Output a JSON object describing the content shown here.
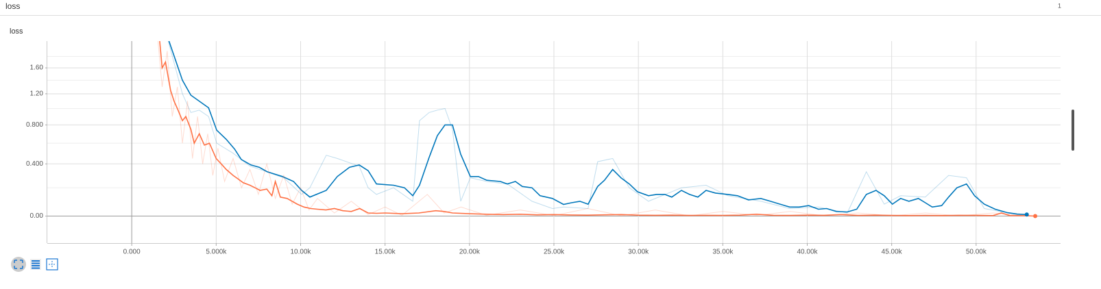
{
  "header": {
    "title": "loss",
    "count": "1"
  },
  "chart_data": {
    "type": "line",
    "title": "loss",
    "xlim": [
      -5000,
      55000
    ],
    "xticks": [
      {
        "value": 0,
        "label": "0.000"
      },
      {
        "value": 5000,
        "label": "5.000k"
      },
      {
        "value": 10000,
        "label": "10.00k"
      },
      {
        "value": 15000,
        "label": "15.00k"
      },
      {
        "value": 20000,
        "label": "20.00k"
      },
      {
        "value": 25000,
        "label": "25.00k"
      },
      {
        "value": 30000,
        "label": "30.00k"
      },
      {
        "value": 35000,
        "label": "35.00k"
      },
      {
        "value": 40000,
        "label": "40.00k"
      },
      {
        "value": 45000,
        "label": "45.00k"
      },
      {
        "value": 50000,
        "label": "50.00k"
      }
    ],
    "ylim": [
      -0.16,
      2.09
    ],
    "yscale": "log1p",
    "yticks": [
      {
        "value": 0,
        "label": "0.00"
      },
      {
        "value": 0.4,
        "label": "0.400"
      },
      {
        "value": 0.8,
        "label": "0.800"
      },
      {
        "value": 1.2,
        "label": "1.20"
      },
      {
        "value": 1.6,
        "label": "1.60"
      }
    ],
    "yminor": [
      0.2,
      0.6,
      1.0,
      1.4,
      1.8
    ],
    "grid": true,
    "series": [
      {
        "color": "#0077bb",
        "smoothed": false,
        "x": [
          2000,
          3000,
          3500,
          4000,
          4550,
          5030,
          6000,
          7000,
          8000,
          9000,
          10060,
          10550,
          11520,
          12170,
          13470,
          14000,
          14490,
          15500,
          16640,
          17040,
          17610,
          18100,
          18550,
          18990,
          19480,
          20050,
          21020,
          22240,
          23700,
          24910,
          25570,
          27020,
          27590,
          28480,
          29460,
          30600,
          32550,
          34010,
          35300,
          37250,
          38960,
          40660,
          42370,
          43500,
          44560,
          45530,
          46990,
          48370,
          49430,
          50480,
          52430,
          53000
        ],
        "values": [
          2.3,
          1.2,
          0.95,
          0.98,
          0.9,
          0.6,
          0.5,
          0.38,
          0.33,
          0.28,
          0.15,
          0.2,
          0.48,
          0.45,
          0.38,
          0.2,
          0.15,
          0.2,
          0.1,
          0.85,
          0.95,
          0.98,
          1.0,
          0.75,
          0.1,
          0.28,
          0.25,
          0.23,
          0.1,
          0.05,
          0.06,
          0.05,
          0.42,
          0.45,
          0.2,
          0.1,
          0.2,
          0.22,
          0.14,
          0.1,
          0.05,
          0.06,
          0.02,
          0.33,
          0.08,
          0.14,
          0.13,
          0.3,
          0.28,
          0.05,
          0.01,
          0.01
        ]
      },
      {
        "color": "#0077bb",
        "smoothed": true,
        "x": [
          2000,
          3000,
          3500,
          4550,
          5030,
          5600,
          6090,
          6490,
          7060,
          7550,
          8030,
          8930,
          9580,
          10060,
          10550,
          11520,
          12170,
          12900,
          13470,
          14000,
          14490,
          15500,
          16150,
          16640,
          17040,
          17610,
          18100,
          18550,
          18990,
          19480,
          20050,
          20530,
          21020,
          21830,
          22240,
          22720,
          23130,
          23700,
          24180,
          24910,
          25570,
          26050,
          26540,
          27020,
          27590,
          27990,
          28480,
          28970,
          29460,
          29950,
          30600,
          31080,
          31570,
          31980,
          32550,
          33030,
          33520,
          34010,
          34570,
          35300,
          35870,
          36520,
          37250,
          37820,
          38390,
          38960,
          39520,
          40090,
          40660,
          41150,
          41720,
          42370,
          42930,
          43500,
          44070,
          44560,
          45040,
          45530,
          46020,
          46580,
          46990,
          47400,
          47960,
          48370,
          48860,
          49430,
          49910,
          50480,
          51130,
          51860,
          52430,
          53000
        ],
        "values": [
          2.3,
          1.4,
          1.18,
          1.01,
          0.74,
          0.64,
          0.54,
          0.44,
          0.39,
          0.37,
          0.33,
          0.29,
          0.25,
          0.18,
          0.13,
          0.18,
          0.29,
          0.37,
          0.39,
          0.34,
          0.23,
          0.22,
          0.2,
          0.14,
          0.22,
          0.46,
          0.68,
          0.8,
          0.8,
          0.49,
          0.29,
          0.29,
          0.26,
          0.25,
          0.23,
          0.25,
          0.21,
          0.2,
          0.14,
          0.12,
          0.078,
          0.09,
          0.1,
          0.08,
          0.21,
          0.26,
          0.35,
          0.28,
          0.23,
          0.17,
          0.14,
          0.15,
          0.15,
          0.13,
          0.18,
          0.15,
          0.13,
          0.18,
          0.16,
          0.15,
          0.14,
          0.11,
          0.12,
          0.1,
          0.08,
          0.06,
          0.06,
          0.07,
          0.045,
          0.05,
          0.03,
          0.027,
          0.045,
          0.15,
          0.18,
          0.14,
          0.08,
          0.12,
          0.1,
          0.12,
          0.09,
          0.06,
          0.07,
          0.13,
          0.2,
          0.23,
          0.14,
          0.08,
          0.045,
          0.022,
          0.013,
          0.01
        ]
      },
      {
        "color": "#ff7043",
        "smoothed": false,
        "x": [
          1500,
          1800,
          2100,
          2400,
          2700,
          3000,
          3300,
          3600,
          3900,
          4200,
          4500,
          4800,
          5100,
          5500,
          6000,
          6500,
          7000,
          7500,
          8000,
          8500,
          9000,
          9500,
          10000,
          10500,
          11000,
          12000,
          13000,
          14000,
          15000,
          16000,
          17500,
          18500,
          19500,
          21000,
          23000,
          25000,
          27000,
          29000,
          31000,
          33000,
          35000,
          37000,
          39000,
          41000,
          43000,
          45000,
          47000,
          49000,
          51000,
          53000
        ],
        "values": [
          2.3,
          1.3,
          1.9,
          0.9,
          1.3,
          0.6,
          1.1,
          0.45,
          0.9,
          0.4,
          0.7,
          0.3,
          0.55,
          0.25,
          0.45,
          0.2,
          0.35,
          0.15,
          0.4,
          0.12,
          0.3,
          0.08,
          0.2,
          0.04,
          0.12,
          0.02,
          0.1,
          0.01,
          0.06,
          0.005,
          0.15,
          0.02,
          0.06,
          0.005,
          0.04,
          0.003,
          0.05,
          0.002,
          0.04,
          0.002,
          0.03,
          0.005,
          0.03,
          0.002,
          0.02,
          0.002,
          0.02,
          0.001,
          0.02,
          0.001
        ]
      },
      {
        "color": "#ff7043",
        "smoothed": true,
        "x": [
          1600,
          1800,
          2000,
          2300,
          2500,
          2700,
          3000,
          3200,
          3500,
          3700,
          4000,
          4300,
          4600,
          5000,
          5300,
          5600,
          6000,
          6300,
          6600,
          7000,
          7300,
          7600,
          8000,
          8300,
          8500,
          8800,
          9200,
          9500,
          9800,
          10200,
          10600,
          11000,
          11500,
          12000,
          12500,
          13000,
          13500,
          14000,
          14500,
          15000,
          16000,
          17000,
          18000,
          18500,
          19000,
          20000,
          21000,
          22000,
          23000,
          24000,
          25000,
          26000,
          27000,
          28000,
          29000,
          30000,
          31000,
          32000,
          33000,
          34000,
          35000,
          36000,
          37000,
          38000,
          39000,
          40000,
          41000,
          42000,
          43000,
          44000,
          45000,
          46000,
          47000,
          48000,
          49000,
          50000,
          51000,
          51500,
          52000,
          53000,
          53500
        ],
        "values": [
          2.3,
          1.6,
          1.7,
          1.25,
          1.1,
          1.0,
          0.85,
          0.9,
          0.75,
          0.6,
          0.7,
          0.58,
          0.6,
          0.45,
          0.4,
          0.35,
          0.3,
          0.27,
          0.24,
          0.22,
          0.2,
          0.18,
          0.19,
          0.14,
          0.25,
          0.13,
          0.12,
          0.1,
          0.08,
          0.06,
          0.05,
          0.045,
          0.04,
          0.05,
          0.035,
          0.03,
          0.05,
          0.02,
          0.018,
          0.02,
          0.015,
          0.02,
          0.035,
          0.03,
          0.02,
          0.015,
          0.012,
          0.01,
          0.012,
          0.008,
          0.01,
          0.007,
          0.006,
          0.008,
          0.01,
          0.006,
          0.005,
          0.006,
          0.004,
          0.005,
          0.004,
          0.006,
          0.012,
          0.005,
          0.004,
          0.006,
          0.005,
          0.01,
          0.004,
          0.006,
          0.004,
          0.003,
          0.004,
          0.003,
          0.005,
          0.004,
          0.003,
          0.02,
          0.003,
          0.002,
          0.0
        ]
      }
    ]
  }
}
